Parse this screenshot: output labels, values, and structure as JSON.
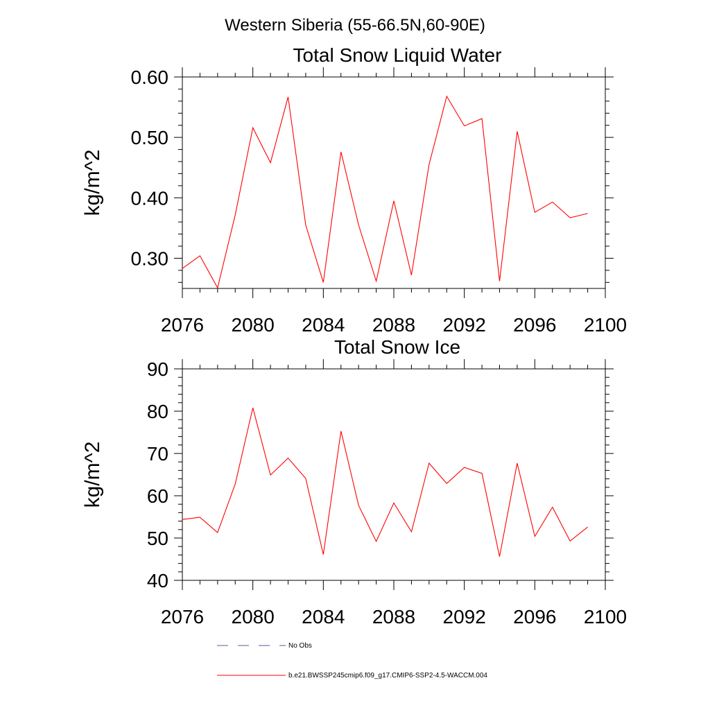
{
  "figure": {
    "title": "Western Siberia (55-66.5N,60-90E)"
  },
  "chart_data": [
    {
      "type": "line",
      "title": "Total Snow Liquid Water",
      "xlabel": "",
      "ylabel": "kg/m^2",
      "xlim": [
        2076,
        2100
      ],
      "ylim": [
        0.25,
        0.6
      ],
      "x_ticks": [
        "2076",
        "2080",
        "2084",
        "2088",
        "2092",
        "2096",
        "2100"
      ],
      "y_ticks": [
        "0.30",
        "0.40",
        "0.50",
        "0.60"
      ],
      "y_tick_values": [
        0.3,
        0.4,
        0.5,
        0.6
      ],
      "grid": false,
      "series": [
        {
          "name": "b.e21.BWSSP245cmip6.f09_g17.CMIP6-SSP2-4.5-WACCM.004",
          "color": "#ff0000",
          "x": [
            2076,
            2077,
            2078,
            2079,
            2080,
            2081,
            2082,
            2083,
            2084,
            2085,
            2086,
            2087,
            2088,
            2089,
            2090,
            2091,
            2092,
            2093,
            2094,
            2095,
            2096,
            2097,
            2098,
            2099
          ],
          "y": [
            0.283,
            0.304,
            0.251,
            0.372,
            0.516,
            0.458,
            0.567,
            0.355,
            0.26,
            0.476,
            0.355,
            0.262,
            0.395,
            0.272,
            0.455,
            0.568,
            0.519,
            0.531,
            0.262,
            0.51,
            0.376,
            0.393,
            0.367,
            0.374
          ]
        }
      ]
    },
    {
      "type": "line",
      "title": "Total Snow Ice",
      "xlabel": "",
      "ylabel": "kg/m^2",
      "xlim": [
        2076,
        2100
      ],
      "ylim": [
        40,
        90
      ],
      "x_ticks": [
        "2076",
        "2080",
        "2084",
        "2088",
        "2092",
        "2096",
        "2100"
      ],
      "y_ticks": [
        "40",
        "50",
        "60",
        "70",
        "80",
        "90"
      ],
      "y_tick_values": [
        40,
        50,
        60,
        70,
        80,
        90
      ],
      "grid": false,
      "series": [
        {
          "name": "b.e21.BWSSP245cmip6.f09_g17.CMIP6-SSP2-4.5-WACCM.004",
          "color": "#ff0000",
          "x": [
            2076,
            2077,
            2078,
            2079,
            2080,
            2081,
            2082,
            2083,
            2084,
            2085,
            2086,
            2087,
            2088,
            2089,
            2090,
            2091,
            2092,
            2093,
            2094,
            2095,
            2096,
            2097,
            2098,
            2099
          ],
          "y": [
            54.4,
            54.9,
            51.3,
            62.8,
            80.8,
            64.9,
            68.9,
            64.1,
            46.1,
            75.3,
            57.7,
            49.2,
            58.3,
            51.5,
            67.7,
            62.9,
            66.7,
            65.3,
            45.6,
            67.7,
            50.4,
            57.3,
            49.3,
            52.6
          ]
        }
      ]
    }
  ],
  "legend": {
    "placement": "bottom",
    "entries": [
      {
        "label": "No Obs",
        "color": "#5a5a9a",
        "style": "dashed"
      },
      {
        "label": "b.e21.BWSSP245cmip6.f09_g17.CMIP6-SSP2-4.5-WACCM.004",
        "color": "#ff0000",
        "style": "solid"
      }
    ]
  }
}
